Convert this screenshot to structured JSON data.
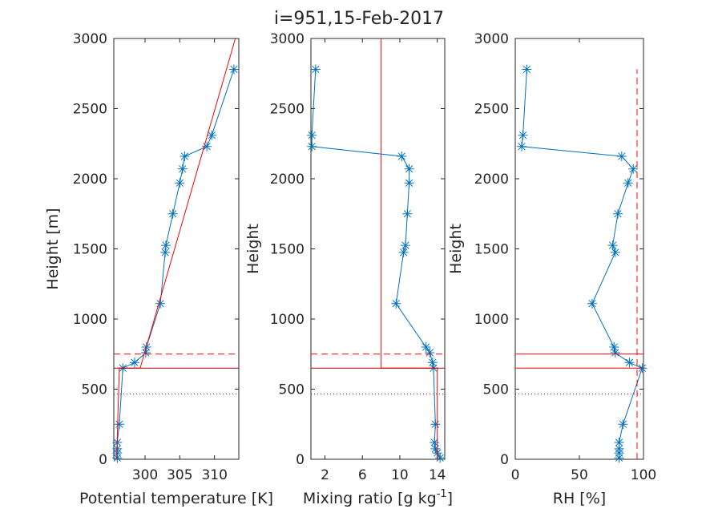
{
  "title": "i=951,15-Feb-2017",
  "colors": {
    "profile": "#0072BD",
    "reference": "#FF0000",
    "axis": "#262626"
  },
  "chart_data": [
    {
      "type": "line",
      "xlabel": "Potential temperature [K]",
      "ylabel": "Height [m]",
      "xlim": [
        295.5,
        313.5
      ],
      "ylim": [
        0,
        3000
      ],
      "xticks": [
        300,
        305,
        310
      ],
      "yticks": [
        0,
        500,
        1000,
        1500,
        2000,
        2500,
        3000
      ],
      "grid": false,
      "series": [
        {
          "style": "line-star",
          "x": [
            296.0,
            296.0,
            296.0,
            296.0,
            296.3,
            296.8,
            298.5,
            300.1,
            300.2,
            302.2,
            302.9,
            303.0,
            304.0,
            305.0,
            305.4,
            305.7,
            308.9,
            309.6,
            312.8
          ],
          "y": [
            10,
            45,
            75,
            120,
            250,
            650,
            690,
            760,
            800,
            1110,
            1475,
            1525,
            1750,
            1970,
            2070,
            2160,
            2230,
            2310,
            2780
          ]
        },
        {
          "style": "ref-line",
          "x": [
            295.9,
            296.3,
            299.3,
            313.0
          ],
          "y": [
            0,
            650,
            650,
            3000
          ]
        },
        {
          "style": "hline-solid",
          "y": 650
        },
        {
          "style": "hline-dashed",
          "y": 750
        },
        {
          "style": "hline-dotted",
          "y": 465
        }
      ]
    },
    {
      "type": "line",
      "xlabel": "Mixing ratio [g kg⁻¹]",
      "xlabel_text": "Mixing ratio [g kg",
      "xlabel_sup": "-1",
      "xlabel_end": "]",
      "ylabel": "Height",
      "xlim": [
        0.5,
        14.8
      ],
      "ylim": [
        0,
        3000
      ],
      "xticks": [
        2,
        6,
        10,
        14
      ],
      "yticks": [
        0,
        500,
        1000,
        1500,
        2000,
        2500,
        3000
      ],
      "grid": false,
      "series": [
        {
          "style": "line-star",
          "x": [
            14.3,
            14.0,
            13.8,
            13.7,
            13.8,
            13.6,
            13.5,
            13.2,
            12.8,
            9.6,
            10.4,
            10.6,
            10.8,
            11.0,
            11.0,
            10.2,
            0.6,
            0.6,
            1.0
          ],
          "y": [
            10,
            45,
            75,
            120,
            250,
            650,
            690,
            760,
            800,
            1110,
            1475,
            1525,
            1750,
            1970,
            2070,
            2160,
            2230,
            2310,
            2780
          ]
        },
        {
          "style": "ref-line",
          "x": [
            14.0,
            14.0,
            8.0,
            8.0
          ],
          "y": [
            0,
            650,
            650,
            3000
          ]
        },
        {
          "style": "hline-solid",
          "y": 650
        },
        {
          "style": "hline-dashed",
          "y": 750
        },
        {
          "style": "hline-dotted",
          "y": 465
        }
      ]
    },
    {
      "type": "line",
      "xlabel": "RH [%]",
      "ylabel": "Height",
      "xlim": [
        0,
        100
      ],
      "ylim": [
        0,
        3000
      ],
      "xticks": [
        0,
        50,
        100
      ],
      "yticks": [
        0,
        500,
        1000,
        1500,
        2000,
        2500,
        3000
      ],
      "grid": false,
      "series": [
        {
          "style": "line-star",
          "x": [
            81,
            81,
            81,
            81,
            84,
            99,
            89,
            78,
            77,
            60,
            78,
            76,
            80,
            88,
            92,
            83,
            5,
            6,
            9
          ],
          "y": [
            10,
            45,
            75,
            120,
            250,
            650,
            690,
            760,
            800,
            1110,
            1475,
            1525,
            1750,
            1970,
            2070,
            2160,
            2230,
            2310,
            2780
          ]
        },
        {
          "style": "vline-dashed",
          "x": 95,
          "y_range": [
            0,
            2780
          ]
        },
        {
          "style": "hline-solid",
          "y": 650
        },
        {
          "style": "hline-solid",
          "y": 750
        },
        {
          "style": "hline-dotted",
          "y": 465
        }
      ]
    }
  ]
}
